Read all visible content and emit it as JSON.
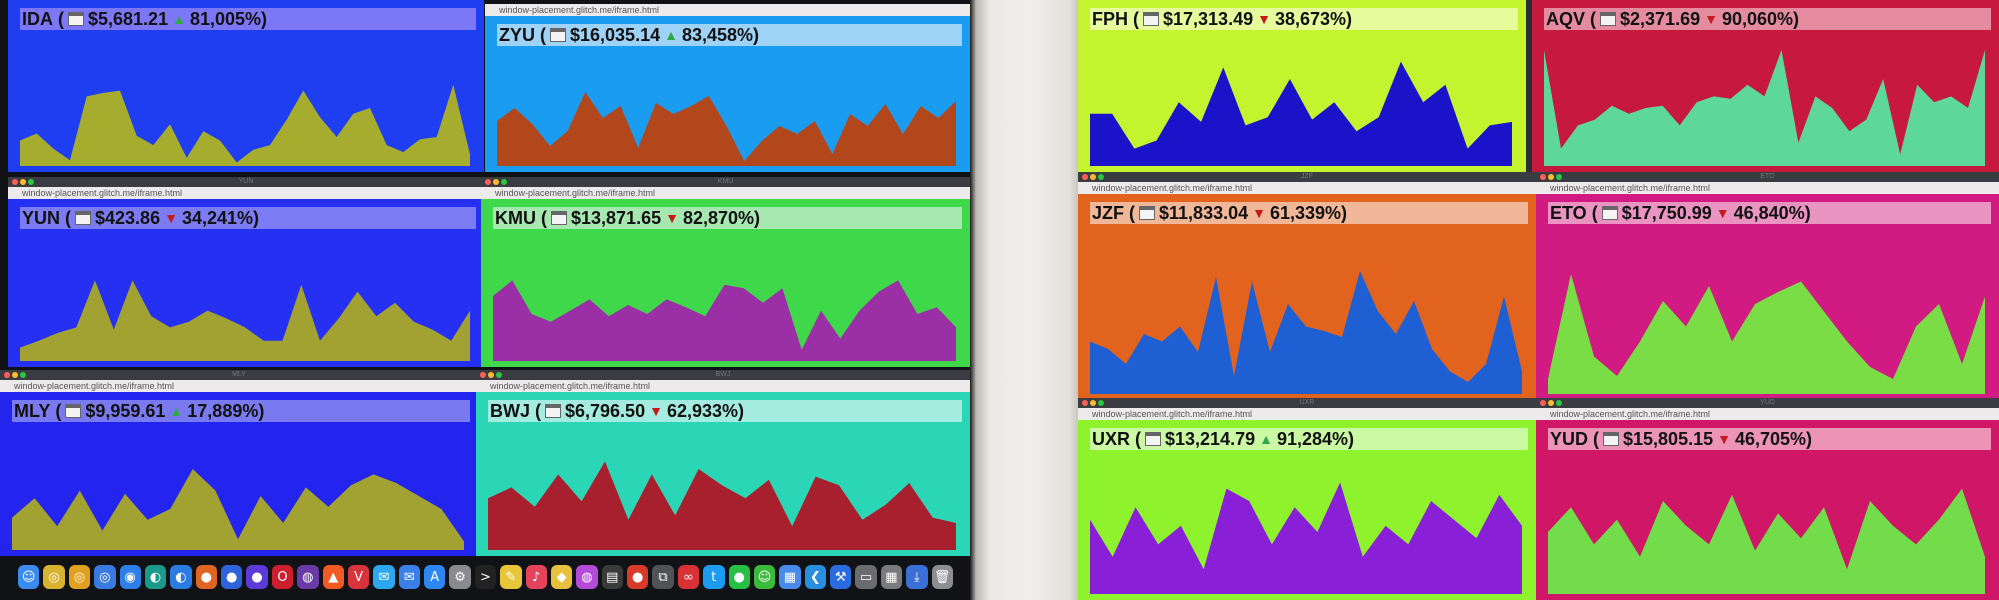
{
  "url": "window-placement.glitch.me/iframe.html",
  "windows": [
    {
      "id": "ida",
      "screen": "left",
      "box": null,
      "title": "",
      "symbol": "IDA",
      "price": "$5,681.21",
      "dir": "up",
      "pct": "81,005%",
      "bg": "#1f3ef2",
      "barColor": "#7b77f7",
      "fill": "#a6ad2e",
      "hasTitleBar": false,
      "hasUrl": false,
      "values": [
        22,
        28,
        15,
        5,
        60,
        63,
        65,
        26,
        18,
        36,
        7,
        30,
        22,
        3,
        14,
        18,
        40,
        65,
        42,
        25,
        45,
        50,
        18,
        12,
        23,
        25,
        70,
        10
      ]
    },
    {
      "id": "zyu",
      "screen": "left",
      "title": "",
      "symbol": "ZYU",
      "price": "$16,035.14",
      "dir": "up",
      "pct": "83,458%",
      "bg": "#1a9cf0",
      "barColor": "#9ed2f7",
      "fill": "#b3471c",
      "hasTitleBar": false,
      "hasUrl": true,
      "values": [
        45,
        58,
        42,
        20,
        35,
        74,
        48,
        60,
        18,
        63,
        52,
        60,
        70,
        40,
        5,
        25,
        40,
        32,
        45,
        12,
        52,
        40,
        62,
        32,
        60,
        48,
        65
      ]
    },
    {
      "id": "yun",
      "screen": "left",
      "title": "YUN",
      "symbol": "YUN",
      "price": "$423.86",
      "dir": "down",
      "pct": "34,241%",
      "bg": "#2630f2",
      "barColor": "#7b7bf4",
      "fill": "#a2a233",
      "hasTitleBar": true,
      "hasUrl": true,
      "values": [
        12,
        18,
        25,
        30,
        72,
        28,
        72,
        40,
        30,
        35,
        45,
        38,
        30,
        18,
        18,
        68,
        18,
        38,
        62,
        40,
        52,
        35,
        28,
        18,
        45
      ]
    },
    {
      "id": "kmu",
      "screen": "left",
      "title": "KMU",
      "symbol": "KMU",
      "price": "$13,871.65",
      "dir": "down",
      "pct": "82,870%",
      "bg": "#3ed84a",
      "barColor": "#a6e8b0",
      "fill": "#9b2fa5",
      "hasTitleBar": true,
      "hasUrl": true,
      "values": [
        58,
        72,
        42,
        35,
        45,
        55,
        40,
        50,
        42,
        55,
        48,
        40,
        68,
        65,
        52,
        65,
        10,
        45,
        20,
        45,
        62,
        72,
        42,
        48,
        30
      ]
    },
    {
      "id": "mly",
      "screen": "left",
      "title": "MLY",
      "symbol": "MLY",
      "price": "$9,959.61",
      "dir": "up",
      "pct": "17,889%",
      "bg": "#2424ef",
      "barColor": "#7a7af0",
      "fill": "#a1a231",
      "hasTitleBar": true,
      "hasUrl": true,
      "values": [
        30,
        48,
        22,
        55,
        18,
        52,
        28,
        38,
        75,
        55,
        10,
        50,
        25,
        58,
        40,
        60,
        70,
        62,
        50,
        38,
        8
      ]
    },
    {
      "id": "bwj",
      "screen": "left",
      "title": "BWJ",
      "symbol": "BWJ",
      "price": "$6,796.50",
      "dir": "down",
      "pct": "62,933%",
      "bg": "#2ad6b6",
      "barColor": "#a3ecdf",
      "fill": "#a8202e",
      "hasTitleBar": true,
      "hasUrl": true,
      "values": [
        48,
        58,
        40,
        70,
        45,
        82,
        28,
        70,
        32,
        75,
        60,
        48,
        65,
        22,
        68,
        60,
        28,
        42,
        62,
        30,
        25
      ]
    },
    {
      "id": "fph",
      "screen": "right",
      "title": "",
      "symbol": "FPH",
      "price": "$17,313.49",
      "dir": "down",
      "pct": "38,673%",
      "bg": "#c3f42e",
      "barColor": "#e6fb9c",
      "fill": "#1b13c9",
      "hasTitleBar": false,
      "hasUrl": false,
      "values": [
        45,
        45,
        15,
        22,
        55,
        38,
        85,
        35,
        42,
        75,
        40,
        55,
        30,
        42,
        90,
        55,
        70,
        15,
        35,
        38
      ]
    },
    {
      "id": "aqv",
      "screen": "right",
      "title": "",
      "symbol": "AQV",
      "price": "$2,371.69",
      "dir": "down",
      "pct": "90,060%",
      "bg": "#c6193d",
      "barColor": "#e58ba0",
      "fill": "#5ed89a",
      "hasTitleBar": false,
      "hasUrl": false,
      "values": [
        100,
        15,
        35,
        40,
        52,
        45,
        50,
        52,
        35,
        55,
        60,
        58,
        70,
        60,
        100,
        20,
        60,
        50,
        30,
        40,
        75,
        10,
        70,
        55,
        60,
        50,
        100
      ]
    },
    {
      "id": "jzf",
      "screen": "right",
      "title": "JZF",
      "symbol": "JZF",
      "price": "$11,833.04",
      "dir": "down",
      "pct": "61,339%",
      "bg": "#e1631e",
      "barColor": "#f0b899",
      "fill": "#1f5fd4",
      "hasTitleBar": true,
      "hasUrl": true,
      "values": [
        35,
        30,
        20,
        40,
        35,
        45,
        28,
        78,
        12,
        75,
        28,
        60,
        45,
        42,
        38,
        82,
        55,
        40,
        62,
        30,
        15,
        8,
        20,
        65,
        15
      ]
    },
    {
      "id": "eto",
      "screen": "right",
      "title": "ETO",
      "symbol": "ETO",
      "price": "$17,750.99",
      "dir": "down",
      "pct": "46,840%",
      "bg": "#d21b82",
      "barColor": "#ea94c1",
      "fill": "#7add46",
      "hasTitleBar": true,
      "hasUrl": true,
      "values": [
        10,
        80,
        25,
        12,
        35,
        62,
        45,
        72,
        35,
        60,
        68,
        75,
        55,
        35,
        18,
        10,
        45,
        60,
        20,
        65
      ]
    },
    {
      "id": "uxr",
      "screen": "right",
      "title": "UXR",
      "symbol": "UXR",
      "price": "$13,214.79",
      "dir": "up",
      "pct": "91,284%",
      "bg": "#8ef22c",
      "barColor": "#cbf9a3",
      "fill": "#8a1fd8",
      "hasTitleBar": true,
      "hasUrl": true,
      "values": [
        60,
        30,
        70,
        40,
        55,
        20,
        85,
        75,
        40,
        70,
        50,
        90,
        30,
        55,
        40,
        75,
        60,
        45,
        80,
        55
      ]
    },
    {
      "id": "yud",
      "screen": "right",
      "title": "YUD",
      "symbol": "YUD",
      "price": "$15,805.15",
      "dir": "down",
      "pct": "46,705%",
      "bg": "#d01767",
      "barColor": "#ec93b6",
      "fill": "#72dc4a",
      "hasTitleBar": true,
      "hasUrl": true,
      "values": [
        50,
        70,
        40,
        60,
        30,
        75,
        55,
        40,
        80,
        35,
        65,
        45,
        70,
        20,
        75,
        55,
        40,
        60,
        85,
        30
      ]
    }
  ],
  "dock": {
    "items": [
      {
        "name": "finder-icon",
        "glyph": "☺",
        "color": "#3b8cf0"
      },
      {
        "name": "chrome-icon",
        "glyph": "◎",
        "color": "#d8b330"
      },
      {
        "name": "chrome-canary-icon",
        "glyph": "◎",
        "color": "#e0a020"
      },
      {
        "name": "chrome-beta-icon",
        "glyph": "◎",
        "color": "#3a7ae0"
      },
      {
        "name": "safari-icon",
        "glyph": "◉",
        "color": "#2d80e8"
      },
      {
        "name": "edge-icon",
        "glyph": "◐",
        "color": "#1a9a8a"
      },
      {
        "name": "edge-beta-icon",
        "glyph": "◐",
        "color": "#2b7be0"
      },
      {
        "name": "firefox-icon",
        "glyph": "●",
        "color": "#e06522"
      },
      {
        "name": "firefox-dev-icon",
        "glyph": "●",
        "color": "#2f63d9"
      },
      {
        "name": "firefox-nightly-icon",
        "glyph": "●",
        "color": "#5c3ad8"
      },
      {
        "name": "opera-icon",
        "glyph": "O",
        "color": "#cc1f2d"
      },
      {
        "name": "tor-icon",
        "glyph": "◍",
        "color": "#6a3aa6"
      },
      {
        "name": "brave-icon",
        "glyph": "▲",
        "color": "#f25a24"
      },
      {
        "name": "vivaldi-icon",
        "glyph": "V",
        "color": "#d8343e"
      },
      {
        "name": "messages-icon",
        "glyph": "✉",
        "color": "#2da8f0"
      },
      {
        "name": "mail-icon",
        "glyph": "✉",
        "color": "#3a80e8"
      },
      {
        "name": "app-store-icon",
        "glyph": "A",
        "color": "#2d86f2"
      },
      {
        "name": "system-preferences-icon",
        "glyph": "⚙",
        "color": "#8a8a8e"
      },
      {
        "name": "terminal-icon",
        "glyph": ">",
        "color": "#222"
      },
      {
        "name": "notes-icon",
        "glyph": "✎",
        "color": "#e7c63a"
      },
      {
        "name": "music-icon",
        "glyph": "♪",
        "color": "#e5435b"
      },
      {
        "name": "duck-icon",
        "glyph": "◆",
        "color": "#e8c040"
      },
      {
        "name": "podcast-icon",
        "glyph": "◍",
        "color": "#b34ad8"
      },
      {
        "name": "activity-icon",
        "glyph": "▤",
        "color": "#3a3a3a"
      },
      {
        "name": "record-icon",
        "glyph": "●",
        "color": "#d83a2a"
      },
      {
        "name": "screens-icon",
        "glyph": "⧉",
        "color": "#505256"
      },
      {
        "name": "creative-cloud-icon",
        "glyph": "∞",
        "color": "#d83236"
      },
      {
        "name": "twitter-icon",
        "glyph": "t",
        "color": "#1d9bf0"
      },
      {
        "name": "wechat-icon",
        "glyph": "●",
        "color": "#28c044"
      },
      {
        "name": "chat-icon",
        "glyph": "☺",
        "color": "#3cba3c"
      },
      {
        "name": "finder-doc-icon",
        "glyph": "▦",
        "color": "#4a8ae8"
      },
      {
        "name": "vscode-icon",
        "glyph": "❮",
        "color": "#2a8ee0"
      },
      {
        "name": "xcode-icon",
        "glyph": "⚒",
        "color": "#2a6ce0"
      },
      {
        "name": "simulator-icon",
        "glyph": "▭",
        "color": "#6c6c70"
      },
      {
        "name": "keyboard-icon",
        "glyph": "▦",
        "color": "#7a7a7e"
      },
      {
        "name": "downloads-icon",
        "glyph": "⤓",
        "color": "#3a6fd8"
      },
      {
        "name": "trash-icon",
        "glyph": "🗑",
        "color": "#8e8e92"
      }
    ]
  }
}
